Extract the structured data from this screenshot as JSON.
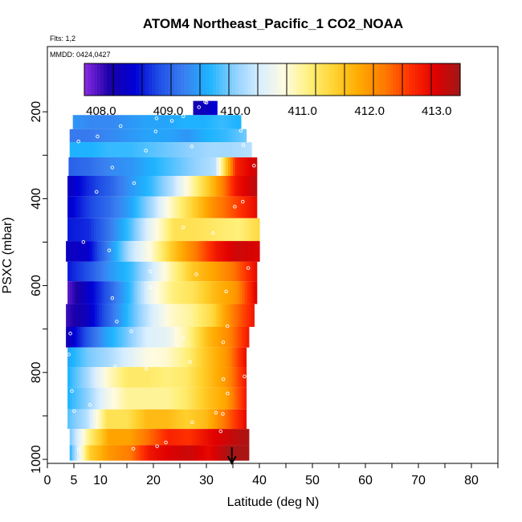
{
  "chart_data": {
    "type": "heatmap",
    "title": "ATOM4 Northeast_Pacific_1 CO2_NOAA",
    "flights_label": "Flts: 1,2",
    "date_label": "MMDD: 0424,0427",
    "xlabel": "Latitude (deg N)",
    "ylabel": "PSXC (mbar)",
    "xlim": [
      0,
      85
    ],
    "ylim": [
      1010,
      80
    ],
    "x_ticks": [
      0,
      5,
      10,
      20,
      30,
      40,
      50,
      60,
      70,
      80
    ],
    "y_ticks": [
      200,
      400,
      600,
      800,
      1000
    ],
    "colorbar": {
      "min": 407.75,
      "max": 413.35,
      "ticks": [
        408.0,
        409.0,
        410.0,
        411.0,
        412.0,
        413.0
      ],
      "tick_labels": [
        "408.0",
        "409.0",
        "410.0",
        "411.0",
        "412.0",
        "413.0"
      ],
      "colors": [
        "#8B2BE2",
        "#1A00A8",
        "#0000D6",
        "#2050E6",
        "#3A80F0",
        "#1EB4FF",
        "#8ED0FF",
        "#D8EEFF",
        "#FFFBE0",
        "#FFF07A",
        "#FFD230",
        "#FFA800",
        "#FF7A00",
        "#FF3000",
        "#E00000",
        "#A01818"
      ]
    },
    "marker": {
      "x": 34.8,
      "label": "arrow"
    },
    "layers": [
      {
        "p": 190,
        "x0": 27.5,
        "x1": 32.0,
        "values": [
          408.2,
          408.3,
          408.5
        ]
      },
      {
        "p": 225,
        "x0": 4.8,
        "x1": 36.5,
        "values": [
          409.4,
          409.3,
          409.3,
          409.4,
          409.5,
          409.5,
          409.6,
          409.6,
          409.7,
          409.6
        ]
      },
      {
        "p": 255,
        "x0": 4.2,
        "x1": 37.5,
        "values": [
          409.2,
          409.2,
          409.3,
          409.4,
          409.5,
          409.5,
          409.4,
          409.6,
          409.7,
          409.9
        ]
      },
      {
        "p": 285,
        "x0": 4.2,
        "x1": 38.5,
        "values": [
          409.6,
          409.6,
          409.7,
          409.7,
          409.8,
          409.9,
          410.0,
          410.1,
          410.1,
          410.2
        ]
      },
      {
        "p": 325,
        "x0": 4.0,
        "x1": 39.5,
        "values": [
          409.0,
          409.1,
          409.3,
          409.4,
          409.6,
          409.8,
          410.0,
          410.2,
          412.7,
          413.1
        ]
      },
      {
        "p": 370,
        "x0": 3.8,
        "x1": 39.5,
        "values": [
          408.3,
          408.7,
          409.0,
          409.4,
          409.7,
          410.2,
          411.0,
          411.8,
          412.8,
          413.2
        ]
      },
      {
        "p": 420,
        "x0": 3.8,
        "x1": 39.5,
        "values": [
          408.4,
          408.8,
          409.1,
          409.5,
          410.1,
          410.9,
          411.5,
          412.1,
          412.5,
          412.9
        ]
      },
      {
        "p": 470,
        "x0": 3.8,
        "x1": 40.0,
        "values": [
          408.6,
          408.7,
          409.2,
          409.8,
          410.6,
          411.3,
          411.3,
          411.2,
          411.1,
          411.4
        ]
      },
      {
        "p": 525,
        "x0": 3.5,
        "x1": 40.0,
        "values": [
          408.3,
          408.4,
          409.3,
          410.2,
          410.8,
          411.6,
          412.2,
          412.8,
          413.1,
          413.0
        ]
      },
      {
        "p": 565,
        "x0": 3.8,
        "x1": 39.5,
        "values": [
          408.6,
          408.9,
          409.4,
          409.7,
          410.3,
          411.0,
          411.6,
          411.9,
          412.3,
          412.9
        ]
      },
      {
        "p": 615,
        "x0": 3.8,
        "x1": 39.5,
        "values": [
          407.9,
          408.4,
          409.0,
          409.7,
          410.6,
          411.1,
          411.3,
          411.7,
          412.0,
          413.0
        ]
      },
      {
        "p": 670,
        "x0": 3.5,
        "x1": 39.0,
        "values": [
          408.0,
          408.3,
          409.0,
          409.7,
          410.3,
          410.8,
          411.0,
          411.4,
          412.2,
          412.8
        ]
      },
      {
        "p": 720,
        "x0": 3.5,
        "x1": 38.0,
        "values": [
          408.2,
          408.9,
          409.5,
          409.9,
          410.4,
          410.5,
          411.0,
          411.7,
          412.1,
          412.8
        ]
      },
      {
        "p": 765,
        "x0": 3.8,
        "x1": 37.5,
        "values": [
          409.5,
          409.9,
          410.1,
          410.4,
          410.7,
          410.8,
          411.1,
          411.6,
          412.0,
          412.9
        ]
      },
      {
        "p": 810,
        "x0": 3.8,
        "x1": 37.5,
        "values": [
          409.6,
          410.1,
          410.8,
          411.2,
          411.2,
          411.1,
          411.2,
          411.6,
          412.0,
          412.8
        ]
      },
      {
        "p": 860,
        "x0": 3.8,
        "x1": 37.5,
        "values": [
          409.6,
          410.0,
          410.6,
          411.0,
          411.0,
          411.0,
          411.2,
          411.6,
          411.9,
          412.8
        ]
      },
      {
        "p": 910,
        "x0": 3.8,
        "x1": 37.5,
        "values": [
          409.8,
          410.2,
          411.3,
          411.3,
          411.7,
          411.7,
          411.5,
          411.7,
          412.3,
          412.9
        ]
      },
      {
        "p": 950,
        "x0": 4.2,
        "x1": 38.0,
        "values": [
          409.9,
          411.1,
          411.9,
          411.9,
          412.3,
          412.7,
          412.6,
          412.9,
          413.1,
          413.3
        ]
      },
      {
        "p": 985,
        "x0": 4.2,
        "x1": 38.0,
        "values": [
          409.6,
          411.5,
          412.0,
          412.2,
          412.8,
          413.0,
          413.1,
          412.9,
          413.3,
          413.3
        ]
      }
    ]
  }
}
